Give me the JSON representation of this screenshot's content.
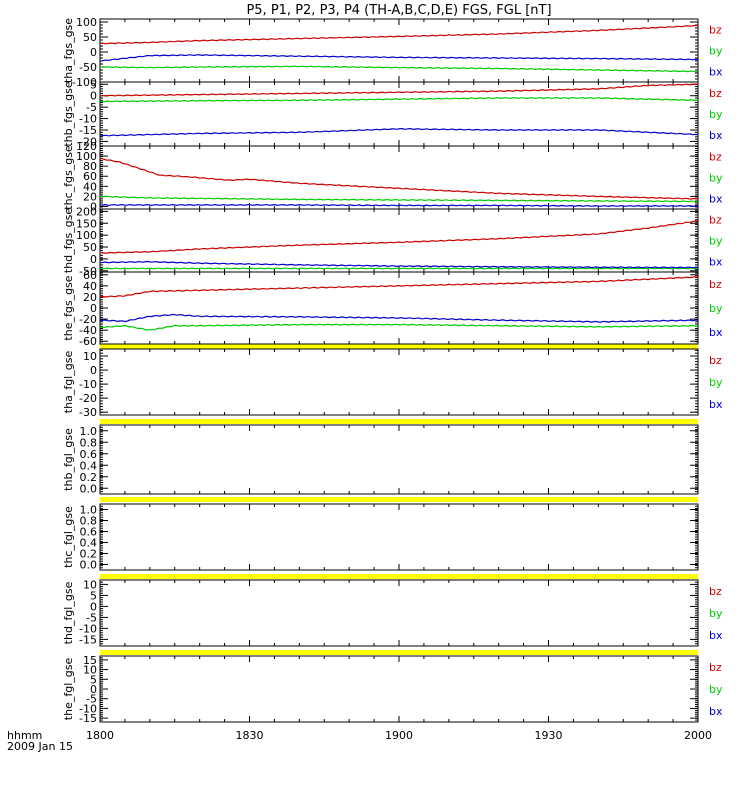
{
  "title": "P5, P1, P2, P3, P4 (TH-A,B,C,D,E) FGS, FGL [nT]",
  "colors": {
    "bz": "#cc0000",
    "by": "#00cc00",
    "bx": "#0000cc",
    "flag": "#ffff00",
    "axis": "#000000"
  },
  "x_axis": {
    "range": [
      0,
      120
    ],
    "ticks": [
      0,
      30,
      60,
      90,
      120
    ],
    "tick_labels": [
      "1800",
      "1830",
      "1900",
      "1930",
      "2000"
    ],
    "label_line1": "hhmm",
    "label_line2": "2009 Jan 15"
  },
  "chart_data": [
    {
      "type": "line",
      "ylabel": "tha_fgs_gse",
      "ylim": [
        -100,
        110
      ],
      "ticks": [
        100,
        50,
        0,
        -50,
        -100
      ],
      "legend": [
        "bz",
        "by",
        "bx"
      ],
      "series": [
        {
          "name": "bz",
          "x": [
            0,
            10,
            20,
            40,
            60,
            80,
            100,
            110,
            120
          ],
          "values": [
            28,
            32,
            38,
            45,
            52,
            60,
            72,
            80,
            88
          ]
        },
        {
          "name": "by",
          "x": [
            0,
            10,
            20,
            40,
            60,
            80,
            100,
            120
          ],
          "values": [
            -50,
            -52,
            -50,
            -48,
            -52,
            -55,
            -60,
            -65
          ]
        },
        {
          "name": "bx",
          "x": [
            0,
            10,
            20,
            40,
            60,
            80,
            100,
            120
          ],
          "values": [
            -30,
            -12,
            -10,
            -14,
            -18,
            -20,
            -22,
            -25
          ]
        }
      ]
    },
    {
      "type": "line",
      "ylabel": "thb_fgs_gse",
      "ylim": [
        -22,
        6
      ],
      "ticks": [
        5,
        0,
        -5,
        -10,
        -15,
        -20
      ],
      "legend": [
        "bz",
        "by",
        "bx"
      ],
      "series": [
        {
          "name": "bz",
          "x": [
            0,
            20,
            40,
            60,
            80,
            100,
            110,
            120
          ],
          "values": [
            0,
            0.5,
            1.0,
            1.5,
            2.0,
            3.0,
            4.5,
            5.0
          ]
        },
        {
          "name": "by",
          "x": [
            0,
            20,
            40,
            60,
            80,
            100,
            110,
            120
          ],
          "values": [
            -2.5,
            -2.2,
            -2.0,
            -1.5,
            -1.0,
            -1.0,
            -1.5,
            -2.0
          ]
        },
        {
          "name": "bx",
          "x": [
            0,
            20,
            40,
            60,
            80,
            100,
            120
          ],
          "values": [
            -17.5,
            -16.5,
            -16.0,
            -14.5,
            -15.0,
            -15.0,
            -17.0
          ]
        }
      ]
    },
    {
      "type": "line",
      "ylabel": "thc_fgs_gse",
      "ylim": [
        -5,
        120
      ],
      "ticks": [
        120,
        100,
        80,
        60,
        40,
        20,
        0
      ],
      "legend": [
        "bz",
        "by",
        "bx"
      ],
      "series": [
        {
          "name": "bz",
          "x": [
            0,
            4,
            8,
            12,
            16,
            20,
            26,
            30,
            40,
            60,
            80,
            100,
            120
          ],
          "values": [
            95,
            88,
            75,
            62,
            60,
            57,
            52,
            54,
            46,
            36,
            26,
            20,
            15
          ]
        },
        {
          "name": "by",
          "x": [
            0,
            10,
            20,
            40,
            60,
            80,
            100,
            120
          ],
          "values": [
            20,
            17,
            16,
            14,
            13,
            12,
            11,
            10
          ]
        },
        {
          "name": "bx",
          "x": [
            0,
            20,
            40,
            60,
            80,
            100,
            120
          ],
          "values": [
            3,
            3,
            3,
            2,
            2,
            1,
            1
          ]
        }
      ]
    },
    {
      "type": "line",
      "ylabel": "thd_fgs_gse",
      "ylim": [
        -55,
        210
      ],
      "ticks": [
        200,
        150,
        100,
        50,
        0,
        -50
      ],
      "legend": [
        "bz",
        "by",
        "bx"
      ],
      "series": [
        {
          "name": "bz",
          "x": [
            0,
            10,
            20,
            40,
            60,
            80,
            100,
            110,
            120
          ],
          "values": [
            25,
            30,
            42,
            58,
            70,
            85,
            105,
            130,
            160
          ]
        },
        {
          "name": "by",
          "x": [
            0,
            40,
            80,
            120
          ],
          "values": [
            -40,
            -40,
            -40,
            -40
          ]
        },
        {
          "name": "bx",
          "x": [
            0,
            10,
            20,
            40,
            60,
            80,
            100,
            120
          ],
          "values": [
            -15,
            -12,
            -18,
            -25,
            -30,
            -33,
            -35,
            -36
          ]
        }
      ]
    },
    {
      "type": "line",
      "ylabel": "the_fgs_gse",
      "ylim": [
        -65,
        65
      ],
      "ticks": [
        60,
        40,
        20,
        0,
        -20,
        -40,
        -60
      ],
      "legend": [
        "bz",
        "by",
        "bx"
      ],
      "series": [
        {
          "name": "bz",
          "x": [
            0,
            5,
            10,
            20,
            40,
            60,
            80,
            100,
            120
          ],
          "values": [
            20,
            22,
            30,
            32,
            36,
            40,
            44,
            48,
            56
          ]
        },
        {
          "name": "by",
          "x": [
            0,
            5,
            10,
            15,
            20,
            40,
            60,
            80,
            100,
            120
          ],
          "values": [
            -35,
            -32,
            -40,
            -32,
            -32,
            -30,
            -30,
            -32,
            -34,
            -32
          ]
        },
        {
          "name": "bx",
          "x": [
            0,
            5,
            10,
            15,
            20,
            40,
            60,
            80,
            100,
            120
          ],
          "values": [
            -22,
            -24,
            -15,
            -12,
            -15,
            -16,
            -18,
            -22,
            -25,
            -22
          ]
        }
      ]
    },
    {
      "type": "line",
      "ylabel": "tha_fgl_gse",
      "ylim": [
        -32,
        15
      ],
      "ticks": [
        10,
        0,
        -10,
        -20,
        -30
      ],
      "legend": [
        "bz",
        "by",
        "bx"
      ],
      "series": []
    },
    {
      "type": "line",
      "ylabel": "thb_fgl_gse",
      "ylim": [
        -0.1,
        1.1
      ],
      "ticks": [
        1.0,
        0.8,
        0.6,
        0.4,
        0.2,
        0.0
      ],
      "tick_labels": [
        "1.0",
        "0.8",
        "0.6",
        "0.4",
        "0.2",
        "0.0"
      ],
      "legend": [],
      "series": []
    },
    {
      "type": "line",
      "ylabel": "thc_fgl_gse",
      "ylim": [
        -0.1,
        1.1
      ],
      "ticks": [
        1.0,
        0.8,
        0.6,
        0.4,
        0.2,
        0.0
      ],
      "tick_labels": [
        "1.0",
        "0.8",
        "0.6",
        "0.4",
        "0.2",
        "0.0"
      ],
      "legend": [],
      "series": []
    },
    {
      "type": "line",
      "ylabel": "thd_fgl_gse",
      "ylim": [
        -18,
        12
      ],
      "ticks": [
        10,
        5,
        0,
        -5,
        -10,
        -15
      ],
      "legend": [
        "bz",
        "by",
        "bx"
      ],
      "series": []
    },
    {
      "type": "line",
      "ylabel": "the_fgl_gse",
      "ylim": [
        -17,
        17
      ],
      "ticks": [
        15,
        10,
        5,
        0,
        -5,
        -10,
        -15
      ],
      "legend": [
        "bz",
        "by",
        "bx"
      ],
      "series": []
    }
  ]
}
